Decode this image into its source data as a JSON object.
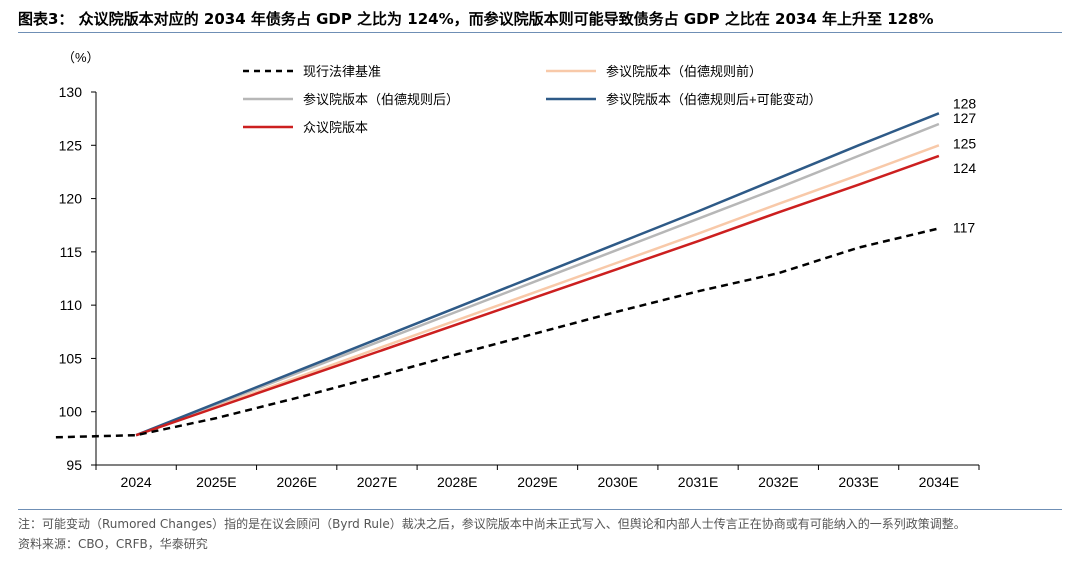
{
  "title": "图表3：  众议院版本对应的 2034 年债务占 GDP 之比为 124%，而参议院版本则可能导致债务占 GDP 之比在 2034 年上升至 128%",
  "note": "注：可能变动（Rumored Changes）指的是在议会顾问（Byrd Rule）裁决之后，参议院版本中尚未正式写入、但舆论和内部人士传言正在协商或有可能纳入的一系列政策调整。",
  "source": "资料来源：CBO，CRFB，华泰研究",
  "chart_data": {
    "type": "line",
    "ylabel": "（%）",
    "ylim": [
      95,
      130
    ],
    "yticks": [
      95,
      100,
      105,
      110,
      115,
      120,
      125,
      130
    ],
    "categories": [
      "2024",
      "2025E",
      "2026E",
      "2027E",
      "2028E",
      "2029E",
      "2030E",
      "2031E",
      "2032E",
      "2033E",
      "2034E"
    ],
    "x_start": "2023",
    "series": [
      {
        "name": "现行法律基准",
        "color": "#000000",
        "dash": true,
        "start": 97.6,
        "values": [
          97.8,
          99.4,
          101.3,
          103.3,
          105.4,
          107.4,
          109.4,
          111.3,
          113.0,
          115.4,
          117.2
        ],
        "end_label": "117"
      },
      {
        "name": "参议院版本（伯德规则前）",
        "color": "#f8c9a9",
        "dash": false,
        "start": null,
        "values": [
          97.8,
          100.5,
          103.2,
          105.9,
          108.6,
          111.3,
          114.0,
          116.7,
          119.5,
          122.2,
          125.0
        ],
        "end_label": "125"
      },
      {
        "name": "参议院版本（伯德规则后）",
        "color": "#b7b7b7",
        "dash": false,
        "start": null,
        "values": [
          97.8,
          100.7,
          103.6,
          106.5,
          109.4,
          112.3,
          115.2,
          118.1,
          121.0,
          124.0,
          127.0
        ],
        "end_label": "127"
      },
      {
        "name": "参议院版本（伯德规则后+可能变动）",
        "color": "#2e5a87",
        "dash": false,
        "start": null,
        "values": [
          97.8,
          100.8,
          103.8,
          106.8,
          109.8,
          112.8,
          115.8,
          118.8,
          121.9,
          125.0,
          128.0
        ],
        "end_label": "128"
      },
      {
        "name": "众议院版本",
        "color": "#cc1f1f",
        "dash": false,
        "start": null,
        "values": [
          97.8,
          100.4,
          103.0,
          105.6,
          108.2,
          110.8,
          113.4,
          116.0,
          118.7,
          121.3,
          124.0
        ],
        "end_label": "124"
      }
    ],
    "legend_placement": "top",
    "grid": false
  }
}
